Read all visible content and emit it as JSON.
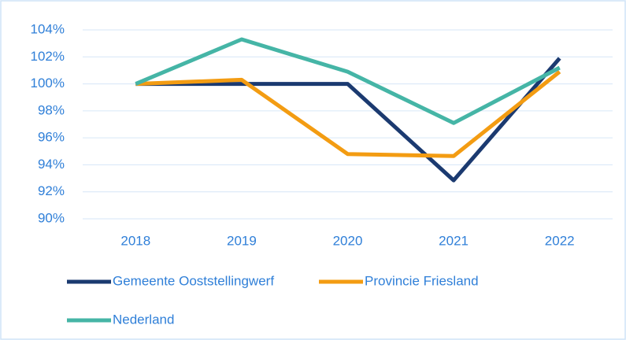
{
  "chart_data": {
    "type": "line",
    "categories": [
      "2018",
      "2019",
      "2020",
      "2021",
      "2022"
    ],
    "series": [
      {
        "name": "Gemeente Ooststellingwerf",
        "color": "#1b3a70",
        "values": [
          100,
          100,
          100,
          92.85,
          101.9
        ]
      },
      {
        "name": "Provincie Friesland",
        "color": "#f39c12",
        "values": [
          100,
          100.3,
          94.8,
          94.65,
          100.9
        ]
      },
      {
        "name": "Nederland",
        "color": "#45b5a6",
        "values": [
          100,
          103.3,
          100.9,
          97.1,
          101.2
        ]
      }
    ],
    "ylim": [
      90,
      104
    ],
    "yticks": [
      {
        "value": 90,
        "label": "90%"
      },
      {
        "value": 92,
        "label": "92%"
      },
      {
        "value": 94,
        "label": "94%"
      },
      {
        "value": 96,
        "label": "96%"
      },
      {
        "value": 98,
        "label": "98%"
      },
      {
        "value": 100,
        "label": "100%"
      },
      {
        "value": 102,
        "label": "102%"
      },
      {
        "value": 104,
        "label": "104%"
      }
    ],
    "grid": true
  }
}
